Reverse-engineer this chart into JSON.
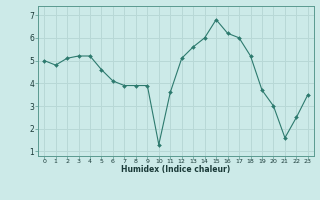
{
  "x": [
    0,
    1,
    2,
    3,
    4,
    5,
    6,
    7,
    8,
    9,
    10,
    11,
    12,
    13,
    14,
    15,
    16,
    17,
    18,
    19,
    20,
    21,
    22,
    23
  ],
  "y": [
    5.0,
    4.8,
    5.1,
    5.2,
    5.2,
    4.6,
    4.1,
    3.9,
    3.9,
    3.9,
    1.3,
    3.6,
    5.1,
    5.6,
    6.0,
    6.8,
    6.2,
    6.0,
    5.2,
    3.7,
    3.0,
    1.6,
    2.5,
    3.5
  ],
  "xlabel": "Humidex (Indice chaleur)",
  "bg_color": "#cceae8",
  "line_color": "#2d7a6e",
  "marker_color": "#2d7a6e",
  "grid_color": "#b8d8d6",
  "ylim": [
    0.8,
    7.4
  ],
  "xlim": [
    -0.5,
    23.5
  ],
  "yticks": [
    1,
    2,
    3,
    4,
    5,
    6,
    7
  ],
  "xticks": [
    0,
    1,
    2,
    3,
    4,
    5,
    6,
    7,
    8,
    9,
    10,
    11,
    12,
    13,
    14,
    15,
    16,
    17,
    18,
    19,
    20,
    21,
    22,
    23
  ]
}
